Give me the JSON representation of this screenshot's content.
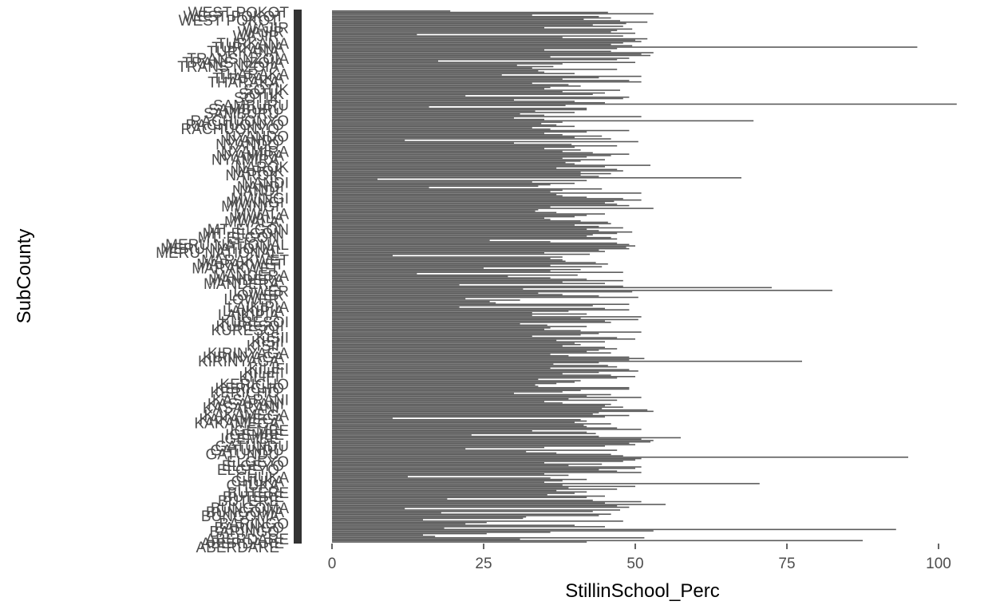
{
  "colors": {
    "bar": "#595959",
    "text": "#4d4d4d",
    "axis_title": "#000000",
    "background": "#ffffff"
  },
  "chart_data": {
    "type": "bar",
    "orientation": "horizontal",
    "title": "",
    "xlabel": "StillinSchool_Perc",
    "ylabel": "SubCounty",
    "xlim": [
      0,
      103
    ],
    "xticks": [
      0,
      25,
      50,
      75,
      100
    ],
    "grid": false,
    "legend": "none",
    "visible_category_labels": [
      "ABERDARE",
      "BARINGO",
      "BUNGOMA",
      "BUTERE",
      "CHUKA",
      "ELGEYO",
      "GATUNDU",
      "IGEMBE",
      "KAKAMEGA",
      "KASARANI",
      "KERICHO",
      "KILIFI",
      "KIRINYAGA",
      "KISII",
      "KURESOI",
      "LAIKIPIA",
      "LOWER",
      "MANDERA",
      "MARAKWET",
      "MERU NATIONAL",
      "MT. ELGON",
      "MWALA",
      "MWINGI",
      "NANDI",
      "NAROK",
      "NYANDO",
      "NYAMIRA",
      "RACHUONYO",
      "SAMBURU",
      "SOTIK",
      "THARAKA",
      "TRANS NZOIA",
      "TURKANA",
      "WEST POKOT",
      "WAJIR"
    ],
    "values": [
      42,
      87.5,
      31,
      51.5,
      17,
      15,
      25.5,
      36,
      53,
      93,
      18.5,
      45,
      40,
      22,
      25.5,
      48,
      15,
      31.5,
      32,
      44,
      46,
      18,
      43,
      47.5,
      12,
      49,
      47,
      55,
      45,
      51,
      43,
      19,
      42,
      45,
      35.5,
      40,
      42,
      37,
      47,
      39,
      50,
      38,
      70.5,
      35,
      38,
      42,
      36,
      12.5,
      39,
      35,
      51,
      47,
      44,
      50,
      51,
      39,
      44.5,
      35,
      48,
      50,
      51,
      95,
      48,
      46,
      37,
      32,
      47,
      22,
      35,
      45,
      50,
      49,
      52.5,
      53,
      51,
      57.5,
      44,
      23,
      43.5,
      42,
      33,
      51,
      47,
      42,
      41.5,
      46,
      40,
      42,
      41,
      10,
      45,
      49,
      43,
      44,
      53,
      52,
      44.5,
      48,
      45,
      46,
      38,
      35,
      47,
      39,
      51,
      42,
      46,
      30,
      38,
      41,
      49,
      49,
      34,
      33.5,
      37,
      40,
      41,
      34,
      47,
      50,
      46,
      38,
      44,
      50.5,
      49,
      36,
      47,
      45.5,
      36.5,
      44,
      77.5,
      49,
      51.5,
      49,
      39,
      36,
      46,
      42,
      44,
      47,
      45,
      38,
      41,
      40,
      45,
      37,
      50,
      47,
      33,
      41,
      44,
      51,
      41,
      35,
      36,
      42,
      35.5,
      31,
      46,
      45,
      50.5,
      41,
      51,
      33,
      42,
      33,
      39,
      49,
      45,
      21,
      43,
      49,
      27,
      26,
      31,
      22,
      50.5,
      44,
      38,
      34,
      49.5,
      82.5,
      31.5,
      72.5,
      48,
      21,
      45,
      38,
      48,
      42,
      36,
      29,
      40.5,
      14,
      48,
      36,
      41,
      25,
      44.5,
      36,
      45.5,
      43.5,
      38.5,
      38,
      36,
      38,
      10,
      42.5,
      35,
      45,
      44,
      49,
      48.5,
      50,
      49,
      47,
      36,
      26,
      47,
      46,
      42,
      43,
      47,
      49.5,
      44,
      42,
      48,
      44,
      40,
      46,
      45.5,
      41,
      36,
      35,
      40,
      42,
      45,
      37,
      33.5,
      34,
      53,
      36,
      49,
      47,
      45,
      46.5,
      51,
      48,
      42,
      38,
      37,
      51,
      36,
      38,
      44.5,
      16,
      34,
      36,
      40,
      33,
      42,
      7.5,
      67.5,
      44,
      41,
      46,
      41,
      48,
      47,
      37,
      45,
      52.5,
      40,
      38.5,
      41,
      45,
      38,
      42,
      46,
      49,
      43,
      38,
      41,
      35,
      40,
      47,
      39.5,
      30,
      50.5,
      12,
      46,
      40,
      44.5,
      38,
      35,
      42,
      49,
      36,
      33,
      40,
      37,
      34.5,
      38,
      69.5,
      35,
      30,
      51,
      35,
      31,
      40,
      33.5,
      42,
      42,
      16,
      38.5,
      103,
      45,
      40,
      30,
      48,
      49,
      22,
      43,
      45,
      38,
      47.5,
      35,
      36,
      41,
      39,
      33,
      51,
      49,
      38,
      44,
      51,
      28,
      40,
      35,
      34,
      47,
      33,
      36.5,
      30.5,
      38,
      50,
      17.5,
      47,
      49,
      36,
      52.5,
      51,
      53,
      46,
      35,
      47,
      96.5,
      49.5,
      46,
      48,
      51,
      50,
      52,
      38,
      48,
      14,
      50,
      46,
      47,
      49.5,
      35,
      48,
      43,
      48.5,
      52,
      47.5,
      41.5,
      46,
      44,
      33,
      53,
      45.5,
      19.5
    ]
  }
}
